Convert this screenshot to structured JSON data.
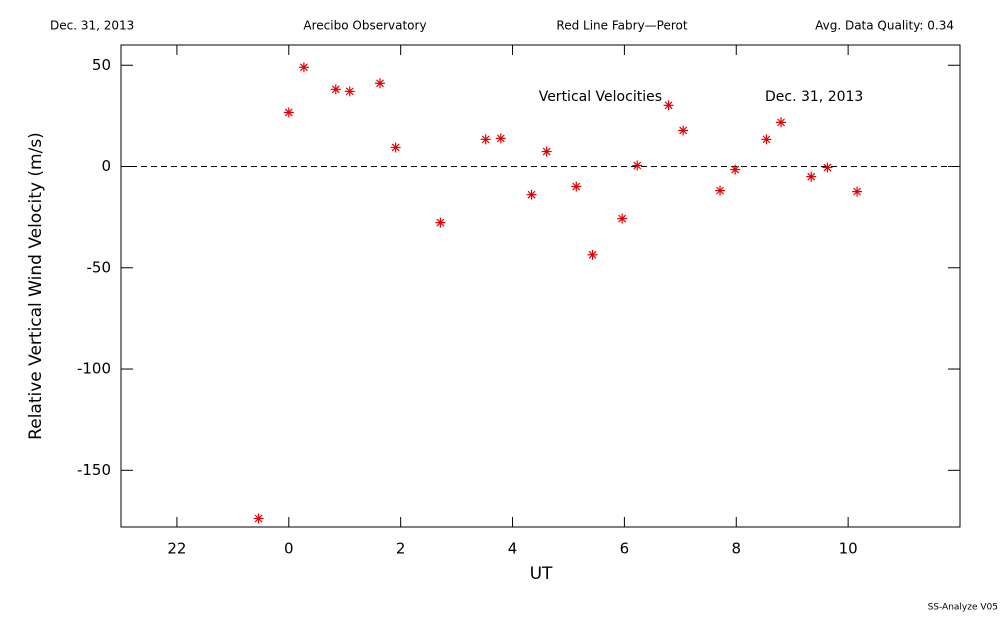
{
  "header": {
    "date": "Dec. 31, 2013",
    "site": "Arecibo Observatory",
    "instrument": "Red Line Fabry—Perot",
    "quality": "Avg. Data Quality: 0.34"
  },
  "footer": "SS-Analyze V05",
  "chart_data": {
    "type": "scatter",
    "annotations": [
      "Vertical Velocities",
      "Dec. 31, 2013"
    ],
    "xlabel": "UT",
    "ylabel": "Relative Vertical Wind Velocity (m/s)",
    "xlim": [
      -3,
      12
    ],
    "ylim": [
      -178,
      60
    ],
    "xticks": [
      {
        "value": -2,
        "label": "22"
      },
      0,
      2,
      4,
      6,
      8,
      10
    ],
    "yticks": [
      -150,
      -100,
      -50,
      0,
      50
    ],
    "reference_line": 0,
    "color": "#e00000",
    "x": [
      -0.54,
      0.0,
      0.27,
      0.84,
      1.09,
      1.63,
      1.91,
      2.71,
      3.52,
      3.79,
      4.34,
      4.61,
      5.14,
      5.43,
      5.96,
      6.23,
      6.79,
      7.05,
      7.71,
      7.98,
      8.54,
      8.8,
      9.34,
      9.63,
      10.16
    ],
    "values": [
      -173.8,
      26.7,
      49,
      38.1,
      37.1,
      41.1,
      9.4,
      -27.7,
      13.4,
      13.9,
      -13.9,
      7.4,
      -9.9,
      -43.6,
      -25.7,
      0.5,
      30.2,
      17.8,
      -11.9,
      -1.5,
      13.4,
      21.8,
      -5.0,
      -0.5,
      -12.4
    ]
  }
}
